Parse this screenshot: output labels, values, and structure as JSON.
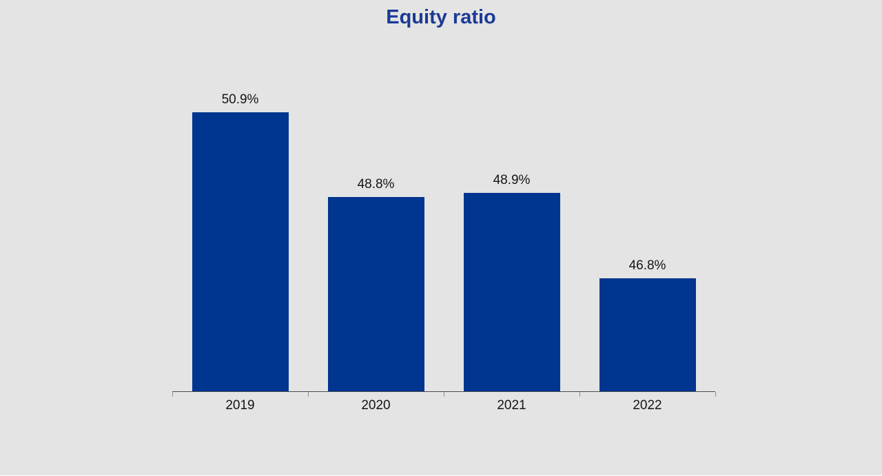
{
  "page": {
    "background_color": "#e4e4e4"
  },
  "chart_data": {
    "type": "bar",
    "title": "Equity ratio",
    "title_color": "#1b3a96",
    "categories": [
      "2019",
      "2020",
      "2021",
      "2022"
    ],
    "values": [
      50.9,
      48.8,
      48.9,
      46.8
    ],
    "value_labels": [
      "50.9%",
      "48.8%",
      "48.9%",
      "46.8%"
    ],
    "ylabel": "",
    "xlabel": "",
    "ylim": [
      44,
      52
    ],
    "grid": false,
    "legend": "none",
    "bar_color": "#003590",
    "axis_line_color": "#4a4a4a",
    "tick_color": "#8f8f8f",
    "label_color": "#141414"
  }
}
